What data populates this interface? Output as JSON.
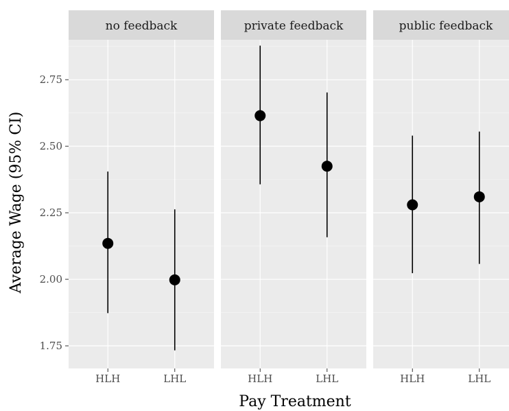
{
  "chart_data": {
    "type": "scatter",
    "subtype": "point-range facet",
    "xlabel": "Pay Treatment",
    "ylabel": "Average Wage (95% CI)",
    "ylim": [
      1.665,
      2.9
    ],
    "yticks": [
      1.75,
      2.0,
      2.25,
      2.5,
      2.75
    ],
    "ytick_labels": [
      "1.75",
      "2.00",
      "2.25",
      "2.50",
      "2.75"
    ],
    "categories": [
      "HLH",
      "LHL"
    ],
    "grid": true,
    "panels": [
      {
        "label": "no feedback",
        "points": [
          {
            "x": "HLH",
            "y": 2.135,
            "lower": 1.873,
            "upper": 2.405
          },
          {
            "x": "LHL",
            "y": 1.998,
            "lower": 1.733,
            "upper": 2.263
          }
        ]
      },
      {
        "label": "private feedback",
        "points": [
          {
            "x": "HLH",
            "y": 2.615,
            "lower": 2.357,
            "upper": 2.878
          },
          {
            "x": "LHL",
            "y": 2.425,
            "lower": 2.158,
            "upper": 2.702
          }
        ]
      },
      {
        "label": "public feedback",
        "points": [
          {
            "x": "HLH",
            "y": 2.28,
            "lower": 2.023,
            "upper": 2.54
          },
          {
            "x": "LHL",
            "y": 2.31,
            "lower": 2.058,
            "upper": 2.555
          }
        ]
      }
    ]
  },
  "colors": {
    "panel_background": "#ebebeb",
    "strip_background": "#d9d9d9",
    "grid_major": "#ffffff",
    "point": "#000000",
    "error_bar": "#000000"
  }
}
